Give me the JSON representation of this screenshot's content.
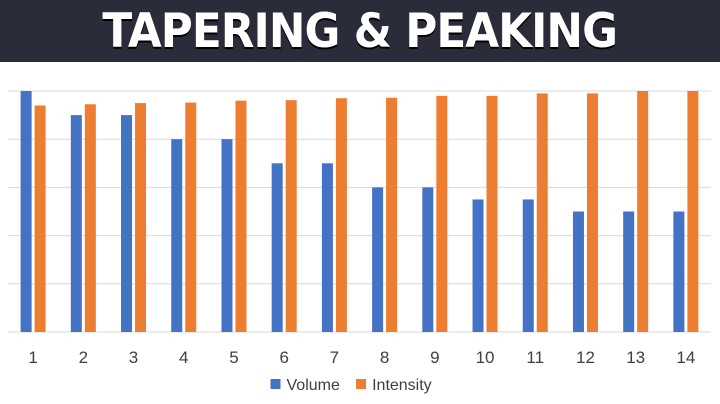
{
  "header": {
    "title": "TAPERING & PEAKING"
  },
  "colors": {
    "banner": "#2b2c3a",
    "volume": "#4472c4",
    "intensity": "#ed7d31",
    "grid": "#d9d9d9"
  },
  "chart_data": {
    "type": "bar",
    "title": "",
    "xlabel": "",
    "ylabel": "",
    "categories": [
      "1",
      "2",
      "3",
      "4",
      "5",
      "6",
      "7",
      "8",
      "9",
      "10",
      "11",
      "12",
      "13",
      "14"
    ],
    "series": [
      {
        "name": "Volume",
        "color": "#4472c4",
        "values": [
          100,
          90,
          90,
          80,
          80,
          70,
          70,
          60,
          60,
          55,
          55,
          50,
          50,
          50
        ]
      },
      {
        "name": "Intensity",
        "color": "#ed7d31",
        "values": [
          94,
          94.5,
          95,
          95.2,
          96,
          96.2,
          97,
          97.2,
          98,
          98,
          99,
          99,
          100,
          100
        ]
      }
    ],
    "ylim": [
      0,
      100
    ],
    "y_gridlines": 5,
    "y_axis_labels_shown": false,
    "grid": true,
    "legend": "bottom"
  }
}
